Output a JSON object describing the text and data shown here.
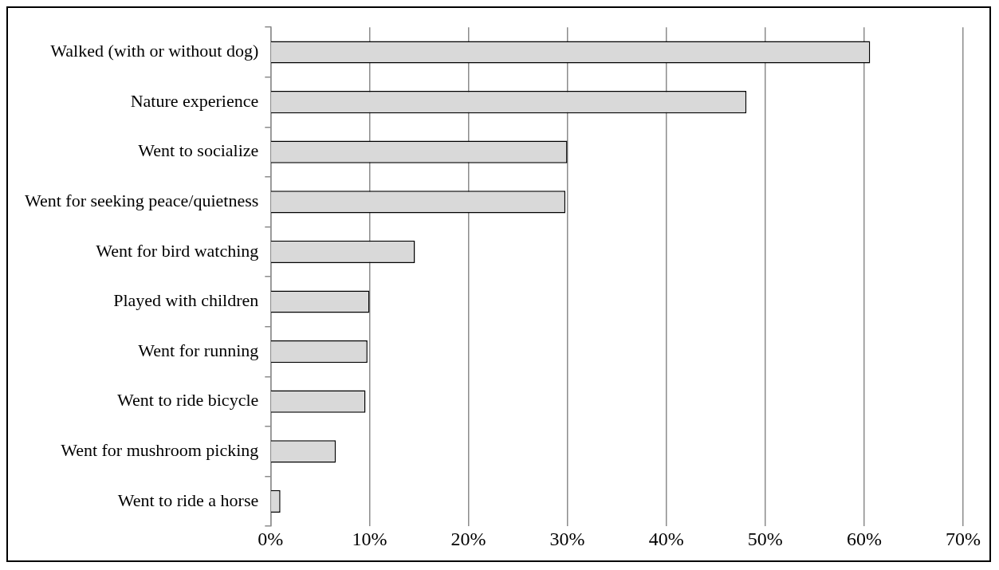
{
  "chart_data": {
    "type": "bar",
    "orientation": "horizontal",
    "categories": [
      "Walked (with or without dog)",
      "Nature experience",
      "Went to socialize",
      "Went for seeking peace/quietness",
      "Went for bird watching",
      "Played with children",
      "Went for running",
      "Went to ride bicycle",
      "Went for mushroom picking",
      "Went to ride a horse"
    ],
    "values": [
      60.6,
      48.1,
      30.0,
      29.8,
      14.6,
      10.0,
      9.8,
      9.6,
      6.6,
      1.0
    ],
    "color": "#d9d9d9",
    "xlim": [
      0,
      70
    ],
    "xticks": [
      {
        "value": 0,
        "label": "0%"
      },
      {
        "value": 10,
        "label": "10%"
      },
      {
        "value": 20,
        "label": "20%"
      },
      {
        "value": 30,
        "label": "30%"
      },
      {
        "value": 40,
        "label": "40%"
      },
      {
        "value": 50,
        "label": "50%"
      },
      {
        "value": 60,
        "label": "60%"
      },
      {
        "value": 70,
        "label": "70%"
      }
    ],
    "grid": "x"
  }
}
